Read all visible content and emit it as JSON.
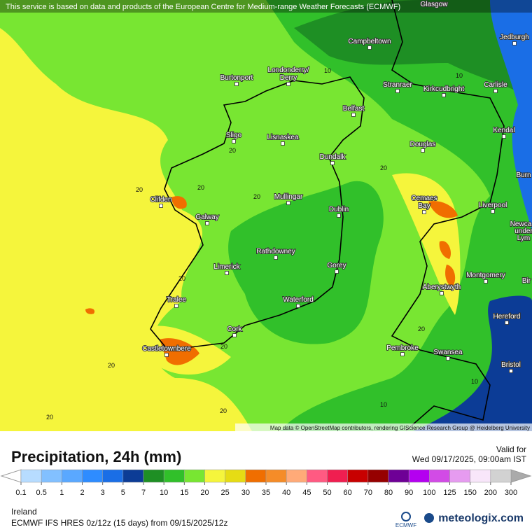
{
  "notice": "This service is based on data and products of the European Centre for Medium-range Weather Forecasts (ECMWF)",
  "attribution": "Map data © OpenStreetMap contributors, rendering GIScience Research Group @ Heidelberg University",
  "cities": [
    "Glasgow",
    "Campbeltown",
    "Jedburgh",
    "Burtonport",
    "Londonderry/",
    "Derry",
    "Stranraer",
    "Kirkcudbright",
    "Carlisle",
    "Belfast",
    "Sligo",
    "Lisnaskea",
    "Kendal",
    "Douglas",
    "Dundalk",
    "Burn",
    "Clifden",
    "Cemaes",
    "Bay",
    "Liverpool",
    "Mullingar",
    "Dublin",
    "Galway",
    "Newca",
    "under",
    "Lym",
    "Rathdowney",
    "Limerick",
    "Gorey",
    "Montgomery",
    "Bir",
    "Aberystwyth",
    "Tralee",
    "Waterford",
    "Hereford",
    "Cork",
    "Castletownbere",
    "Pembroke",
    "Swansea",
    "Bristol"
  ],
  "contour_labels": [
    "10",
    "10",
    "10",
    "10",
    "20",
    "20",
    "20",
    "20",
    "20",
    "20",
    "20",
    "20",
    "20",
    "20",
    "20"
  ],
  "title": "Precipitation, 24h (mm)",
  "valid_label": "Valid for",
  "valid_time": "Wed 09/17/2025, 09:00am IST",
  "legend": {
    "ticks": [
      0.1,
      0.5,
      1,
      2,
      3,
      5,
      7,
      10,
      15,
      20,
      25,
      30,
      35,
      40,
      45,
      50,
      60,
      70,
      80,
      90,
      100,
      125,
      150,
      200,
      300
    ],
    "colors": [
      "#b7dcff",
      "#82c0ff",
      "#5aa8ff",
      "#2e8cff",
      "#1a6ee6",
      "#0c3c96",
      "#1e8f24",
      "#31c02a",
      "#78e632",
      "#f5f53c",
      "#e6dc14",
      "#f06e00",
      "#f58c28",
      "#ffaa78",
      "#ff5a82",
      "#f01e50",
      "#c80000",
      "#960000",
      "#6e0096",
      "#b400f0",
      "#d24be6",
      "#e69bf0",
      "#f8e6fa",
      "#d2d2d2"
    ]
  },
  "region": "Ireland",
  "model": "ECMWF IFS HRES 0z/12z (15 days) from 09/15/2025/12z",
  "logo_small": "ECMWF",
  "brand": "meteologix.com"
}
